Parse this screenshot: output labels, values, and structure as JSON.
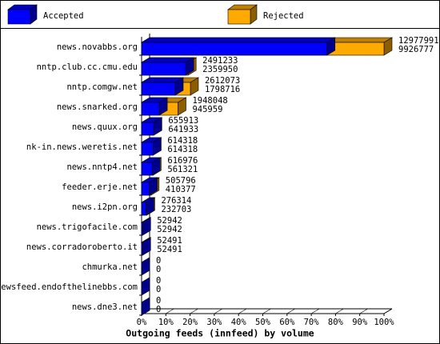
{
  "chart_data": {
    "type": "bar3d",
    "orientation": "horizontal",
    "title": "Outgoing feeds (innfeed) by volume",
    "categories": [
      "news.novabbs.org",
      "nntp.club.cc.cmu.edu",
      "nntp.comgw.net",
      "news.snarked.org",
      "news.quux.org",
      "nk-in.news.weretis.net",
      "news.nntp4.net",
      "feeder.erje.net",
      "news.i2pn.org",
      "news.trigofacile.com",
      "news.corradoroberto.it",
      "chmurka.net",
      "newsfeed.endofthelinebbs.com",
      "news.dne3.net"
    ],
    "series": [
      {
        "name": "Accepted",
        "color": "#0000ff",
        "values": [
          9926777,
          2359950,
          1798716,
          945959,
          641933,
          614318,
          561321,
          410377,
          232703,
          52942,
          52491,
          0,
          0,
          0
        ]
      },
      {
        "name": "Rejected",
        "color": "#ffaa00",
        "values": [
          12977991,
          2491233,
          2612073,
          1948048,
          655913,
          614318,
          616976,
          505796,
          276314,
          52942,
          52491,
          0,
          0,
          0
        ]
      }
    ],
    "xlim": [
      0,
      12977991
    ],
    "xticks": [
      {
        "value": 0,
        "label": "0%"
      },
      {
        "value": 1297799.1,
        "label": "10%"
      },
      {
        "value": 2595598.2,
        "label": "20%"
      },
      {
        "value": 3893397.3,
        "label": "30%"
      },
      {
        "value": 5191196.4,
        "label": "40%"
      },
      {
        "value": 6488995.5,
        "label": "50%"
      },
      {
        "value": 7786794.6,
        "label": "60%"
      },
      {
        "value": 9084593.7,
        "label": "70%"
      },
      {
        "value": 10382392.8,
        "label": "80%"
      },
      {
        "value": 11680191.9,
        "label": "90%"
      },
      {
        "value": 12977991,
        "label": "100%"
      }
    ],
    "legend": "top"
  }
}
